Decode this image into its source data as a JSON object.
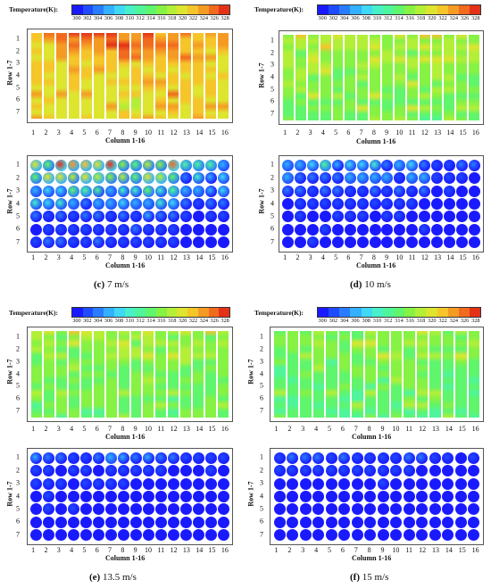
{
  "legend": {
    "title": "Temperature(K):",
    "ticks": [
      "300",
      "302",
      "304",
      "306",
      "308",
      "310",
      "312",
      "314",
      "316",
      "318",
      "320",
      "322",
      "324",
      "326",
      "328"
    ],
    "colors": [
      "#1a1aff",
      "#1f4bff",
      "#2a7cff",
      "#33b0ff",
      "#3fd8f5",
      "#47f0c8",
      "#4ff59a",
      "#5ff56c",
      "#86f244",
      "#b3ef37",
      "#dde52f",
      "#f5c52a",
      "#f59b24",
      "#f26a1e",
      "#e33218"
    ]
  },
  "axes": {
    "row": "Row 1-7",
    "column": "Column 1-16"
  },
  "rows": [
    "1",
    "2",
    "3",
    "4",
    "5",
    "6",
    "7"
  ],
  "columns": [
    "1",
    "2",
    "3",
    "4",
    "5",
    "6",
    "7",
    "8",
    "9",
    "10",
    "11",
    "12",
    "13",
    "14",
    "15",
    "16"
  ],
  "captions": {
    "c_letter": "(c)",
    "c_text": "7 m/s",
    "d_letter": "(d)",
    "d_text": "10 m/s",
    "e_letter": "(e)",
    "e_text": "13.5 m/s",
    "f_letter": "(f)",
    "f_text": "15 m/s"
  },
  "panels": {
    "c": {
      "map_level": 0.78,
      "cyl_hot_rows": [
        0.55,
        0.4,
        0.3,
        0.2,
        0.12,
        0.08,
        0.08
      ]
    },
    "d": {
      "map_level": 0.6,
      "cyl_hot_rows": [
        0.25,
        0.15,
        0.1,
        0.06,
        0.05,
        0.04,
        0.04
      ]
    },
    "e": {
      "map_level": 0.58,
      "cyl_hot_rows": [
        0.12,
        0.08,
        0.05,
        0.04,
        0.04,
        0.03,
        0.03
      ]
    },
    "f": {
      "map_level": 0.55,
      "cyl_hot_rows": [
        0.1,
        0.06,
        0.04,
        0.03,
        0.03,
        0.03,
        0.03
      ]
    }
  }
}
